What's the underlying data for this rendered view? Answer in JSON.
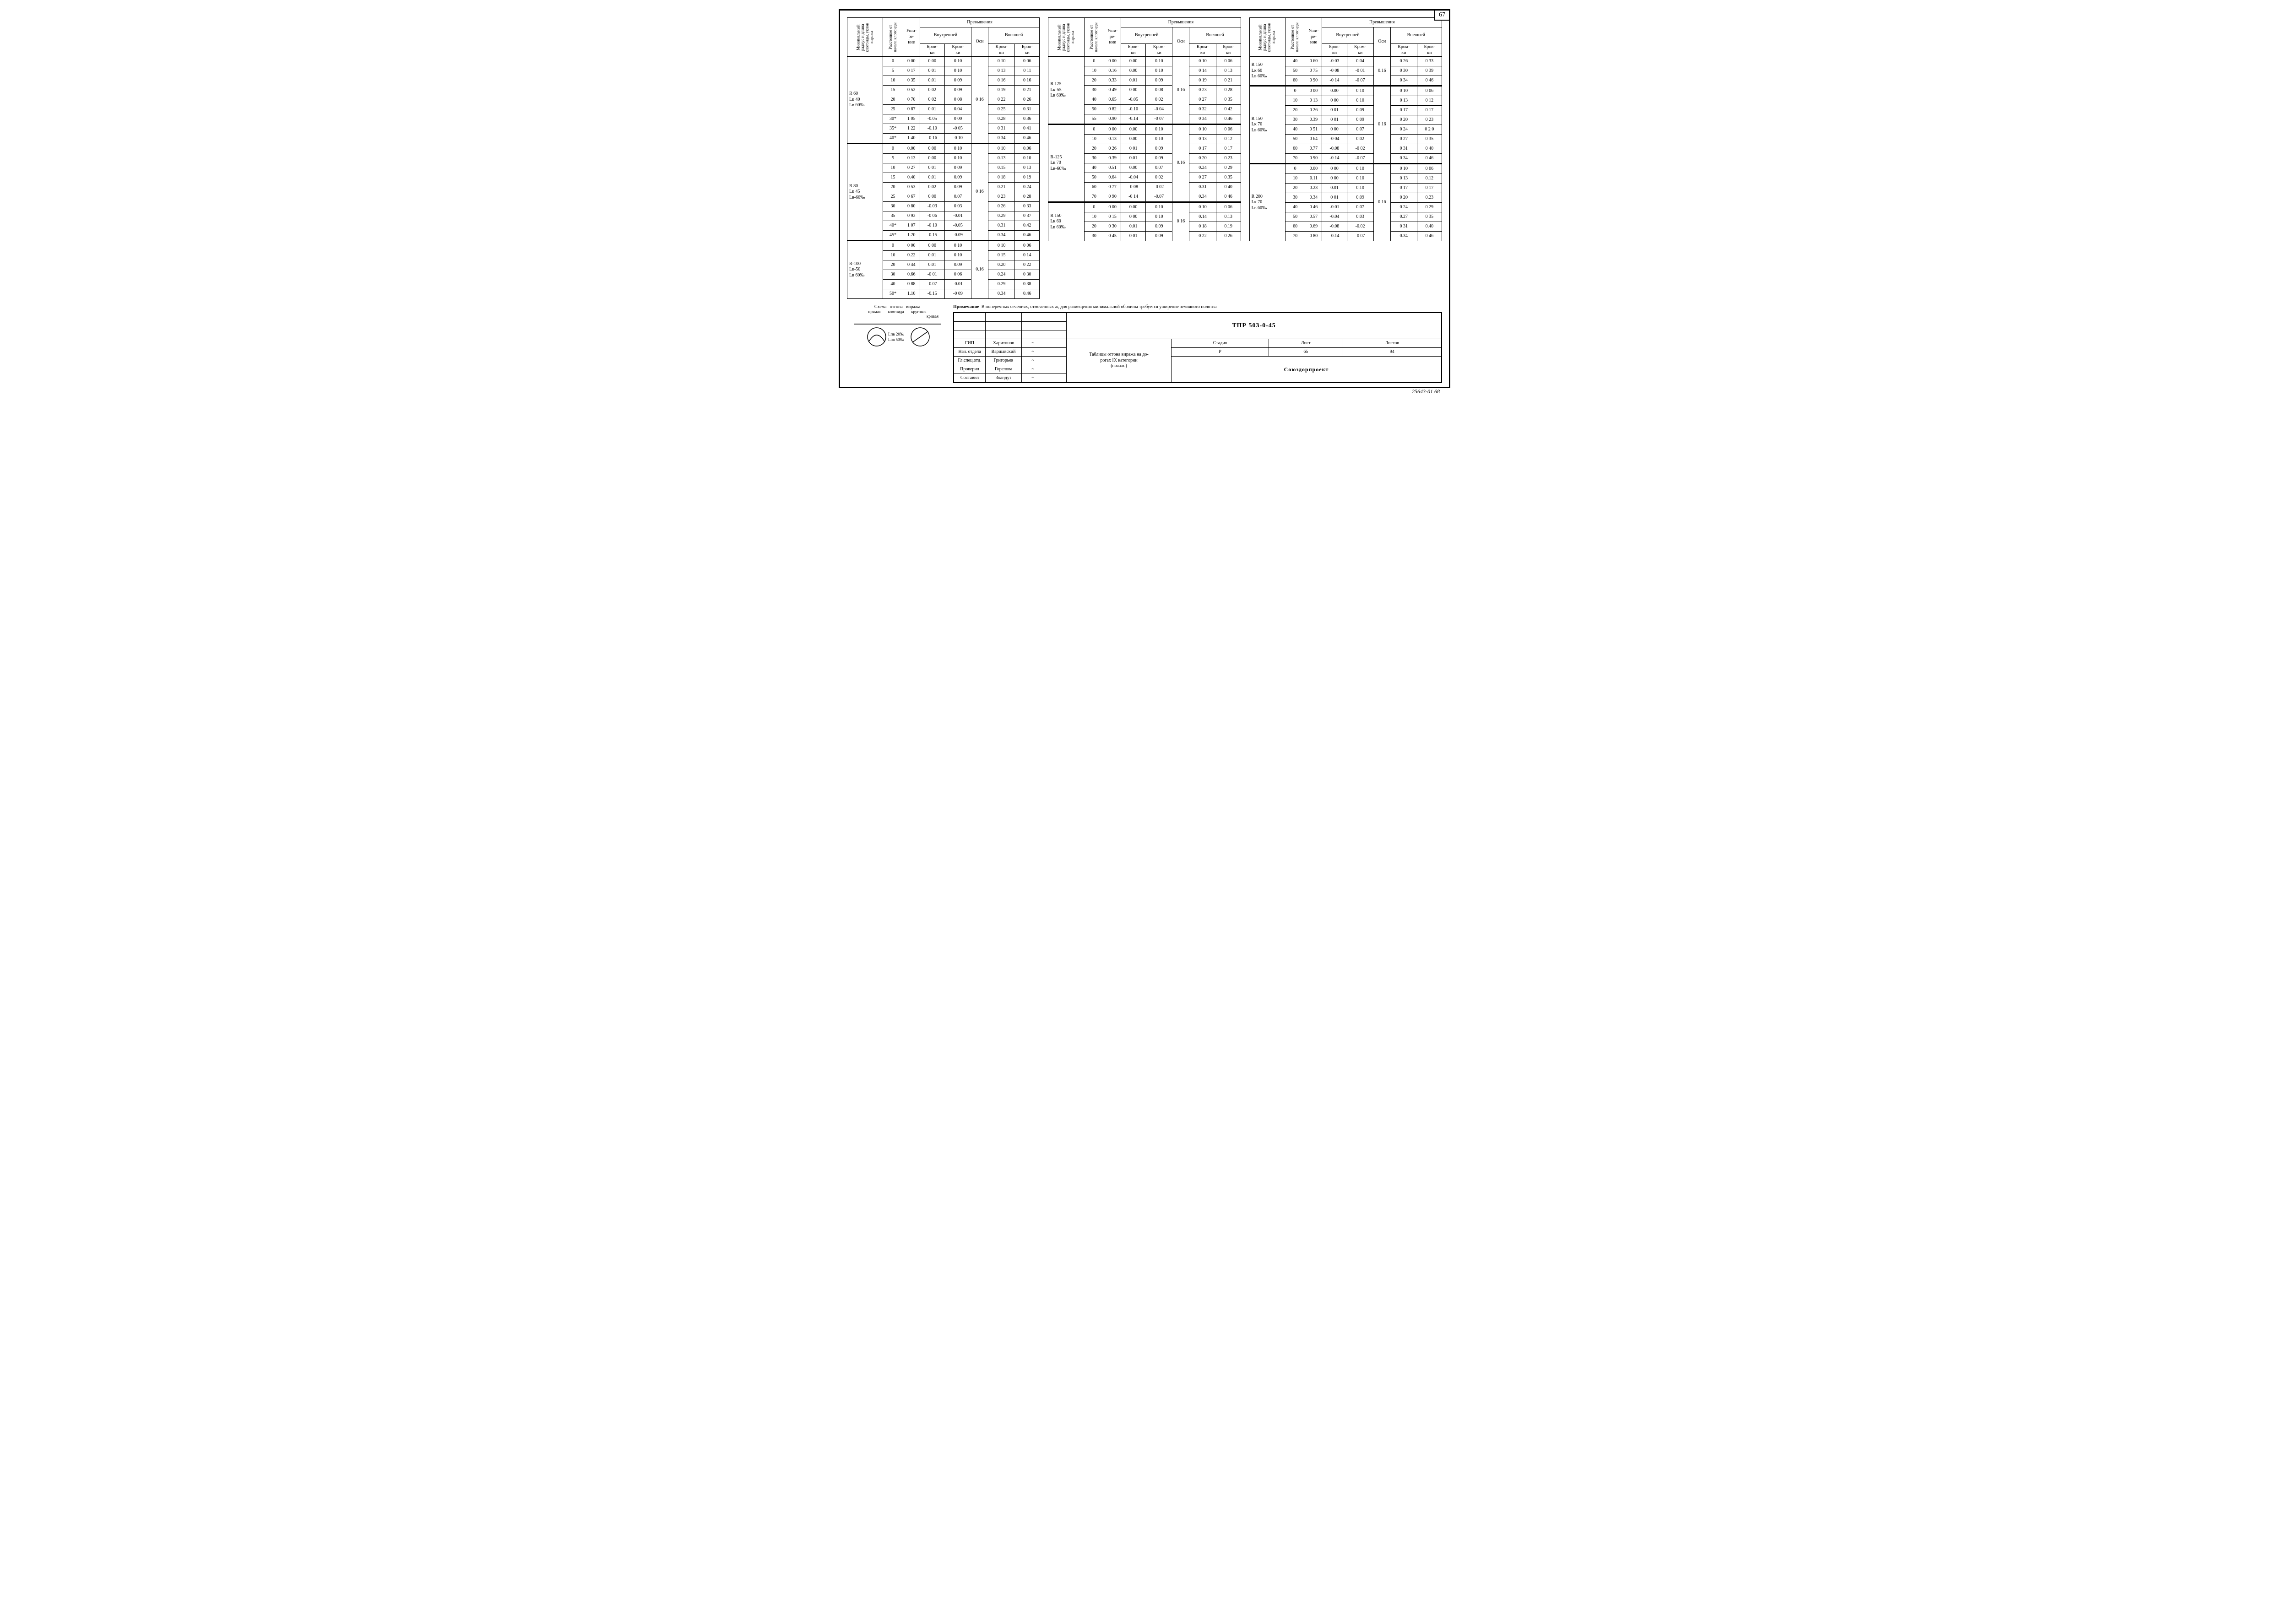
{
  "page_number": "67",
  "footer_code": "25643-01  68",
  "headers": {
    "col1": "Минимальный радиус и длина клотоиды, уклон виража",
    "col2": "Расстояние от начала клотоиды",
    "col3": "Уши-\nре-\nние",
    "group_over": "Превышения",
    "inner": "Внутренней",
    "outer": "Внешней",
    "axis": "Оси",
    "brov": "Бров-\nки",
    "krom": "Кром-\nки"
  },
  "schema": {
    "title": "Схема   отгона   виража",
    "line1": "прямая       клотоида       круговая",
    "line2": "кривая",
    "label1": "Lпв 20‰",
    "label2": "Lов 50‰"
  },
  "note_label": "Примечание",
  "note_text": "В поперечных сечениях, отмеченных ж, для размещения минимальной обочины требуется уширение земляного полотна",
  "stamp": {
    "code": "ТПР  503-0-45",
    "title": "Таблицы отгона виража на до-\nрогах IX категории\n(начало)",
    "org": "Союздорпроект",
    "stage_h": "Стадия",
    "sheet_h": "Лист",
    "sheets_h": "Листов",
    "stage": "Р",
    "sheet": "65",
    "sheets": "94",
    "roles": [
      "ГИП",
      "Нач. отдела",
      "Гл.спец.отд.",
      "Проверил",
      "Составил"
    ],
    "names": [
      "Харитонов",
      "Варшавский",
      "Григорьев",
      "Горелова",
      "Зоандут"
    ]
  },
  "blocks": [
    {
      "label": "R 60\nLк 40\nLв 60‰",
      "axis": "0 16",
      "rows": [
        [
          "0",
          "0 00",
          "0 00",
          "0 10",
          "0 10",
          "0 06"
        ],
        [
          "5",
          "0 17",
          "0 01",
          "0 10",
          "0 13",
          "0 11"
        ],
        [
          "10",
          "0 35",
          "0.01",
          "0 09",
          "0 16",
          "0 16"
        ],
        [
          "15",
          "0 52",
          "0 02",
          "0 09",
          "0 19",
          "0 21"
        ],
        [
          "20",
          "0 70",
          "0 02",
          "0 08",
          "0 22",
          "0 26"
        ],
        [
          "25",
          "0 87",
          "0 01",
          "0.04",
          "0 25",
          "0.31"
        ],
        [
          "30*",
          "1 05",
          "-0.05",
          "0 00",
          "0.28",
          "0.36"
        ],
        [
          "35*",
          "1 22",
          "-0.10",
          "-0 05",
          "0 31",
          "0 41"
        ],
        [
          "40*",
          "1 40",
          "-0 16",
          "-0 10",
          "0 34",
          "0 46"
        ]
      ]
    },
    {
      "label": "R 80\nLк 45\nLв-60‰",
      "axis": "0 16",
      "rows": [
        [
          "0",
          "0.00",
          "0 00",
          "0 10",
          "0 10",
          "0.06"
        ],
        [
          "5",
          "0 13",
          "0.00",
          "0 10",
          "0.13",
          "0 10"
        ],
        [
          "10",
          "0 27",
          "0 01",
          "0 09",
          "0.15",
          "0 13"
        ],
        [
          "15",
          "0.40",
          "0.01",
          "0.09",
          "0 18",
          "0 19"
        ],
        [
          "20",
          "0 53",
          "0.02",
          "0.09",
          "0.21",
          "0.24"
        ],
        [
          "25",
          "0 67",
          "0 00",
          "0.07",
          "0 23",
          "0 28"
        ],
        [
          "30",
          "0 80",
          "-0.03",
          "0 03",
          "0 26",
          "0 33"
        ],
        [
          "35",
          "0 93",
          "-0 06",
          "-0.01",
          "0.29",
          "0 37"
        ],
        [
          "40*",
          "1 07",
          "-0 10",
          "-0.05",
          "0.31",
          "0.42"
        ],
        [
          "45*",
          "1.20",
          "-0.15",
          "-0.09",
          "0.34",
          "0 46"
        ]
      ]
    },
    {
      "label": "R-100\nLк-50\nLв 60‰",
      "axis": "0.16",
      "rows": [
        [
          "0",
          "0 00",
          "0 00",
          "0 10",
          "0 10",
          "0 06"
        ],
        [
          "10",
          "0.22",
          "0.01",
          "0 10",
          "0 15",
          "0 14"
        ],
        [
          "20",
          "0 44",
          "0.01",
          "0.09",
          "0.20",
          "0 22"
        ],
        [
          "30",
          "0.66",
          "-0 01",
          "0 06",
          "0.24",
          "0 30"
        ],
        [
          "40",
          "0 88",
          "-0.07",
          "-0.01",
          "0.29",
          "0.38"
        ],
        [
          "50*",
          "1.10",
          "-0.15",
          "-0 09",
          "0.34",
          "0.46"
        ]
      ]
    },
    {
      "label": "R 125\nLк-55\nLв 60‰",
      "axis": "0 16",
      "rows": [
        [
          "0",
          "0 00",
          "0.00",
          "0.10",
          "0 10",
          "0 06"
        ],
        [
          "10",
          "0.16",
          "0.00",
          "0 10",
          "0 14",
          "0 13"
        ],
        [
          "20",
          "0.33",
          "0.01",
          "0 09",
          "0 19",
          "0 21"
        ],
        [
          "30",
          "0 49",
          "0 00",
          "0 08",
          "0 23",
          "0 28"
        ],
        [
          "40",
          "0.65",
          "-0.05",
          "0 02",
          "0 27",
          "0 35"
        ],
        [
          "50",
          "0 82",
          "-0.10",
          "-0 04",
          "0 32",
          "0 42"
        ],
        [
          "55",
          "0.90",
          "-0.14",
          "-0 07",
          "0 34",
          "0.46"
        ]
      ]
    },
    {
      "label": "R-125\nLк 70\nLв-60‰",
      "axis": "0.16",
      "rows": [
        [
          "0",
          "0 00",
          "0.00",
          "0 10",
          "0 10",
          "0 06"
        ],
        [
          "10",
          "0.13",
          "0.00",
          "0 10",
          "0 13",
          "0 12"
        ],
        [
          "20",
          "0 26",
          "0 01",
          "0 09",
          "0 17",
          "0 17"
        ],
        [
          "30",
          "0.39",
          "0.01",
          "0 09",
          "0 20",
          "0.23"
        ],
        [
          "40",
          "0.51",
          "0.00",
          "0.07",
          "0.24",
          "0 29"
        ],
        [
          "50",
          "0.64",
          "-0.04",
          "0 02",
          "0 27",
          "0.35"
        ],
        [
          "60",
          "0 77",
          "-0 08",
          "-0 02",
          "0.31",
          "0 40"
        ],
        [
          "70",
          "0 90",
          "-0 14",
          "-0.07",
          "0.34",
          "0 46"
        ]
      ]
    },
    {
      "label": "R 150\nLк 60\nLв 60‰",
      "axis": "0 16",
      "rows": [
        [
          "0",
          "0 00",
          "0.00",
          "0 10",
          "0 10",
          "0 06"
        ],
        [
          "10",
          "0 15",
          "0 00",
          "0 10",
          "0.14",
          "0.13"
        ],
        [
          "20",
          "0 30",
          "0.01",
          "0.09",
          "0 18",
          "0.19"
        ],
        [
          "30",
          "0 45",
          "0 01",
          "0 09",
          "0 22",
          "0 26"
        ]
      ]
    },
    {
      "label": "R 150\nLк 60\nLв 60‰",
      "axis": "0.16",
      "rows": [
        [
          "40",
          "0 60",
          "-0 03",
          "0 04",
          "0 26",
          "0 33"
        ],
        [
          "50",
          "0 75",
          "-0 08",
          "-0 01",
          "0 30",
          "0 39"
        ],
        [
          "60",
          "0 90",
          "-0 14",
          "-0 07",
          "0 34",
          "0 46"
        ]
      ]
    },
    {
      "label": "R 150\nLк 70\nLв 60‰",
      "axis": "0 16",
      "rows": [
        [
          "0",
          "0 00",
          "0.00",
          "0 10",
          "0 10",
          "0 06"
        ],
        [
          "10",
          "0 13",
          "0 00",
          "0 10",
          "0 13",
          "0 12"
        ],
        [
          "20",
          "0 26",
          "0 01",
          "0 09",
          "0 17",
          "0 17"
        ],
        [
          "30",
          "0.39",
          "0 01",
          "0 09",
          "0 20",
          "0 23"
        ],
        [
          "40",
          "0 51",
          "0 00",
          "0 07",
          "0 24",
          "0 2 0"
        ],
        [
          "50",
          "0 64",
          "-0 04",
          "0.02",
          "0 27",
          "0 35"
        ],
        [
          "60",
          "0.77",
          "-0.08",
          "-0 02",
          "0 31",
          "0 40"
        ],
        [
          "70",
          "0 90",
          "-0 14",
          "-0 07",
          "0 34",
          "0 46"
        ]
      ]
    },
    {
      "label": "R 200\nLк 70\nLв 60‰",
      "axis": "0 16",
      "rows": [
        [
          "0",
          "0.00",
          "0 00",
          "0 10",
          "0 10",
          "0 06"
        ],
        [
          "10",
          "0.11",
          "0 00",
          "0 10",
          "0 13",
          "0.12"
        ],
        [
          "20",
          "0.23",
          "0.01",
          "0.10",
          "0 17",
          "0 17"
        ],
        [
          "30",
          "0.34",
          "0 01",
          "0.09",
          "0 20",
          "0.23"
        ],
        [
          "40",
          "0 46",
          "-0.01",
          "0.07",
          "0 24",
          "0 29"
        ],
        [
          "50",
          "0.57",
          "-0.04",
          "0.03",
          "0.27",
          "0 35"
        ],
        [
          "60",
          "0.69",
          "-0.08",
          "-0.02",
          "0 31",
          "0.40"
        ],
        [
          "70",
          "0 80",
          "-0.14",
          "-0 07",
          "0.34",
          "0 46"
        ]
      ]
    }
  ]
}
